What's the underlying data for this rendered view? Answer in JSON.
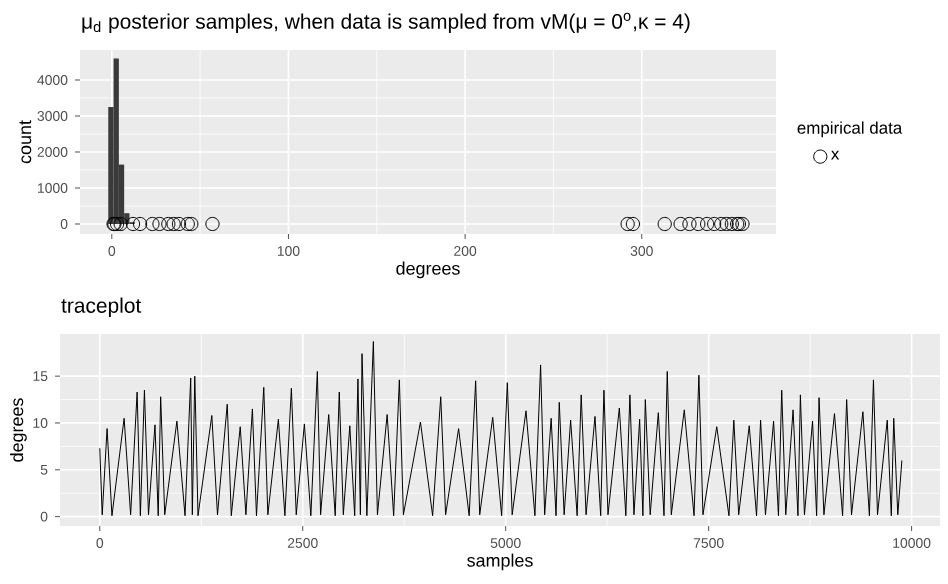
{
  "chart_data": [
    {
      "type": "histogram",
      "title": "μ$_{d}$ posterior samples, when data is sampled from vM(μ = 0$^{o}$,κ = 4)",
      "xlabel": "degrees",
      "ylabel": "count",
      "legend_title": "empirical data",
      "legend": "right",
      "grid": true,
      "bins": [
        -2,
        1,
        4,
        7,
        10,
        13,
        16,
        19
      ],
      "values": [
        3250,
        4600,
        1650,
        300,
        50,
        null,
        0
      ],
      "color": "#3a3a3a",
      "xlim": [
        -18,
        376
      ],
      "ylim": [
        -278,
        4833
      ],
      "xticks": [
        0,
        100,
        200,
        300
      ],
      "yticks": [
        0,
        1000,
        2000,
        3000,
        4000
      ],
      "series": [
        {
          "type": "scatter",
          "name": "x",
          "color": "#000000",
          "marker": "circle",
          "x": [
            1,
            1.5,
            3,
            5,
            12,
            16,
            23,
            27,
            32,
            35,
            38,
            43,
            45,
            57,
            292,
            295,
            313,
            322,
            327,
            332,
            337,
            341,
            345,
            348,
            351,
            354,
            355,
            357
          ],
          "values": [
            0,
            0,
            0,
            0,
            0,
            0,
            0,
            0,
            0,
            0,
            0,
            0,
            0,
            0,
            0,
            0,
            0,
            0,
            0,
            0,
            0,
            0,
            0,
            0,
            0,
            0,
            0,
            0
          ]
        }
      ]
    },
    {
      "type": "line",
      "title": "traceplot",
      "xlabel": "samples",
      "ylabel": "degrees",
      "grid": true,
      "color": "#000000",
      "xlim": [
        -490,
        10350
      ],
      "ylim": [
        -1,
        19.5
      ],
      "xticks": [
        0,
        2500,
        5000,
        7500,
        10000
      ],
      "yticks": [
        0,
        5,
        10,
        15
      ],
      "x": [
        0,
        30,
        90,
        150,
        300,
        380,
        460,
        500,
        550,
        600,
        680,
        720,
        750,
        800,
        950,
        1050,
        1120,
        1140,
        1170,
        1210,
        1380,
        1450,
        1570,
        1620,
        1730,
        1800,
        1880,
        1930,
        2020,
        2070,
        2200,
        2280,
        2360,
        2420,
        2520,
        2600,
        2680,
        2720,
        2820,
        2900,
        2950,
        3000,
        3080,
        3140,
        3180,
        3210,
        3230,
        3290,
        3370,
        3420,
        3540,
        3620,
        3690,
        3740,
        3950,
        4100,
        4200,
        4260,
        4420,
        4550,
        4630,
        4680,
        4840,
        4950,
        5020,
        5080,
        5250,
        5360,
        5430,
        5480,
        5560,
        5620,
        5660,
        5720,
        5800,
        5880,
        5930,
        5990,
        6100,
        6170,
        6210,
        6260,
        6400,
        6480,
        6530,
        6580,
        6650,
        6690,
        6720,
        6780,
        6880,
        6950,
        6990,
        7040,
        7200,
        7320,
        7380,
        7430,
        7600,
        7750,
        7810,
        7870,
        8000,
        8090,
        8140,
        8200,
        8300,
        8360,
        8400,
        8450,
        8540,
        8600,
        8630,
        8680,
        8780,
        8830,
        8860,
        8920,
        9050,
        9150,
        9200,
        9260,
        9400,
        9480,
        9530,
        9580,
        9700,
        9750,
        9780,
        9830,
        9880
      ],
      "values": [
        7.3,
        0.2,
        9.4,
        0.1,
        10.5,
        0.2,
        13.3,
        0.1,
        13.5,
        0.2,
        9.8,
        0.1,
        12.8,
        0.2,
        10.2,
        0.1,
        14.8,
        0.2,
        15.0,
        0.1,
        10.8,
        0.2,
        12.0,
        0.1,
        9.6,
        0.2,
        11.5,
        0.1,
        13.8,
        0.2,
        10.4,
        0.1,
        13.7,
        0.2,
        9.9,
        0.1,
        15.5,
        0.2,
        10.9,
        0.1,
        13.3,
        0.2,
        9.7,
        0.1,
        14.7,
        0.2,
        17.4,
        0.1,
        18.7,
        0.2,
        10.9,
        0.1,
        14.6,
        0.2,
        10.1,
        0.1,
        12.8,
        0.2,
        9.4,
        0.1,
        14.5,
        0.2,
        10.6,
        0.1,
        14.3,
        0.2,
        11.3,
        0.1,
        16.2,
        0.2,
        10.5,
        0.1,
        12.2,
        0.2,
        10.3,
        0.1,
        13.0,
        0.2,
        10.7,
        0.1,
        13.5,
        0.2,
        11.6,
        0.1,
        13.0,
        0.2,
        10.4,
        0.1,
        12.5,
        0.2,
        11.1,
        0.1,
        15.5,
        0.2,
        11.4,
        0.1,
        15.1,
        0.2,
        9.6,
        0.1,
        10.3,
        0.2,
        9.7,
        0.1,
        10.3,
        0.2,
        10.2,
        0.1,
        13.5,
        0.2,
        11.4,
        0.1,
        13.0,
        0.2,
        10.2,
        0.1,
        12.7,
        0.2,
        11.0,
        0.1,
        12.5,
        0.2,
        11.2,
        0.1,
        14.6,
        0.2,
        10.3,
        0.1,
        10.5,
        0.2,
        6.0
      ]
    }
  ]
}
